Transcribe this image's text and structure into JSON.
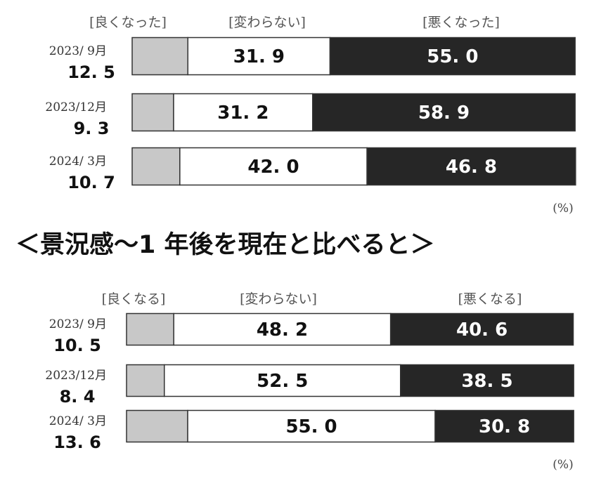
{
  "heading": "＜景況感～1 年後を現在と比べると＞",
  "colors": {
    "good": "#c8c8c8",
    "same": "#ffffff",
    "bad": "#262626",
    "border": "#333333"
  },
  "chart_data": [
    {
      "type": "bar",
      "orientation": "horizontal",
      "stacked": true,
      "percent_scale": [
        0,
        100
      ],
      "unit": "(%)",
      "legend": [
        "[良くなった]",
        "[変わらない]",
        "[悪くなった]"
      ],
      "categories": [
        "2023/ 9月",
        "2023/12月",
        "2024/ 3月"
      ],
      "series": [
        {
          "name": "[良くなった]",
          "values": [
            12.5,
            9.3,
            10.7
          ],
          "labels": [
            "12. 5",
            "9. 3",
            "10. 7"
          ]
        },
        {
          "name": "[変わらない]",
          "values": [
            31.9,
            31.2,
            42.0
          ],
          "labels": [
            "31. 9",
            "31. 2",
            "42. 0"
          ]
        },
        {
          "name": "[悪くなった]",
          "values": [
            55.0,
            58.9,
            46.8
          ],
          "labels": [
            "55. 0",
            "58. 9",
            "46. 8"
          ]
        }
      ]
    },
    {
      "type": "bar",
      "orientation": "horizontal",
      "stacked": true,
      "percent_scale": [
        0,
        100
      ],
      "unit": "(%)",
      "legend": [
        "[良くなる]",
        "[変わらない]",
        "[悪くなる]"
      ],
      "categories": [
        "2023/ 9月",
        "2023/12月",
        "2024/ 3月"
      ],
      "series": [
        {
          "name": "[良くなる]",
          "values": [
            10.5,
            8.4,
            13.6
          ],
          "labels": [
            "10. 5",
            "8. 4",
            "13. 6"
          ]
        },
        {
          "name": "[変わらない]",
          "values": [
            48.2,
            52.5,
            55.0
          ],
          "labels": [
            "48. 2",
            "52. 5",
            "55. 0"
          ]
        },
        {
          "name": "[悪くなる]",
          "values": [
            40.6,
            38.5,
            30.8
          ],
          "labels": [
            "40. 6",
            "38. 5",
            "30. 8"
          ]
        }
      ]
    }
  ]
}
